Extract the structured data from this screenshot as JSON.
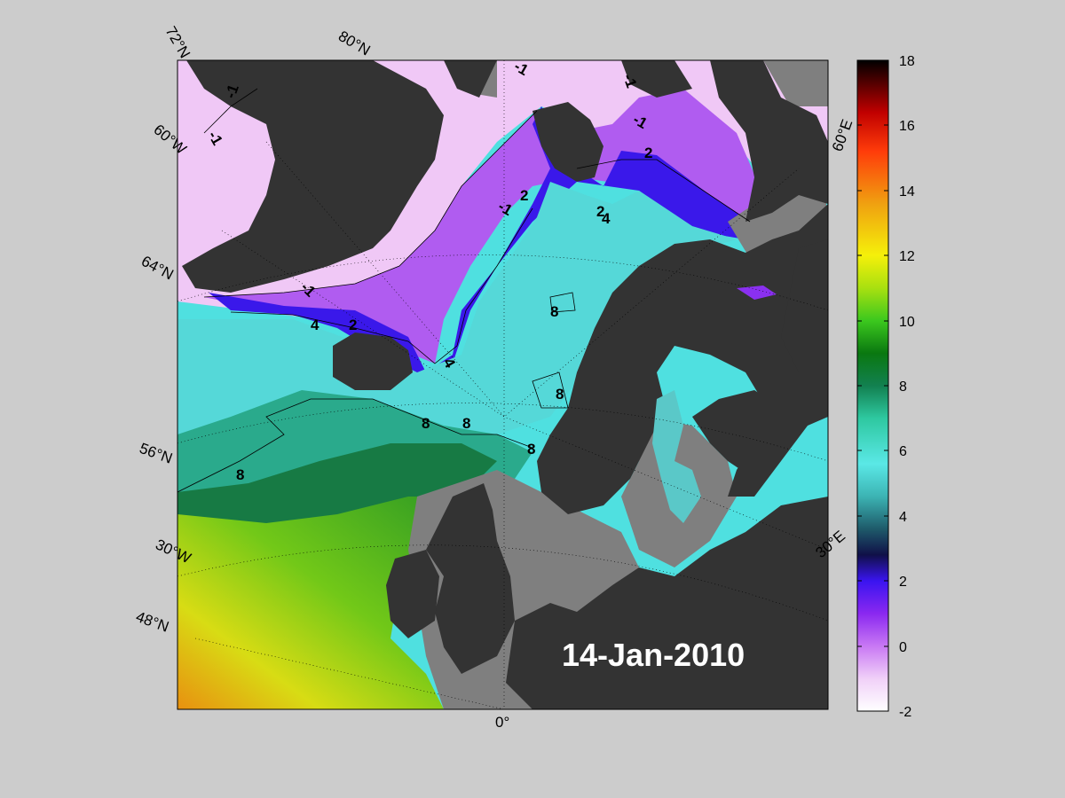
{
  "map": {
    "date_label": "14-Jan-2010",
    "graticule_labels": {
      "lat_72n": "72°N",
      "lat_80n": "80°N",
      "lon_60w": "60°W",
      "lat_64n": "64°N",
      "lat_56n": "56°N",
      "lon_30w": "30°W",
      "lat_48n": "48°N",
      "lon_0": "0°",
      "lon_30e": "30°E",
      "lon_60e": "60°E"
    },
    "contour_labels": [
      "-1",
      "-1",
      "-1",
      "-1",
      "-1",
      "-1",
      "-1",
      "2",
      "2",
      "2",
      "2",
      "4",
      "4",
      "4",
      "8",
      "8",
      "8",
      "8",
      "8",
      "8"
    ],
    "colors": {
      "land": "#333333",
      "ice_gray": "#7f7f7f",
      "background": "#cccccc"
    }
  },
  "colorbar": {
    "min": -2,
    "max": 18,
    "ticks": [
      "18",
      "16",
      "14",
      "12",
      "10",
      "8",
      "6",
      "4",
      "2",
      "0",
      "-2"
    ],
    "colors": [
      "#ffffff",
      "#e9a9f7",
      "#a64ef0",
      "#7a1cf0",
      "#2b12ef",
      "#0a0a40",
      "#2a8a8a",
      "#55e6e6",
      "#2ec8a0",
      "#0f6e4a",
      "#0a8c10",
      "#3cc81e",
      "#a0e010",
      "#f5f00a",
      "#f5a010",
      "#ff3c0a",
      "#c80000",
      "#500000",
      "#000000"
    ]
  }
}
